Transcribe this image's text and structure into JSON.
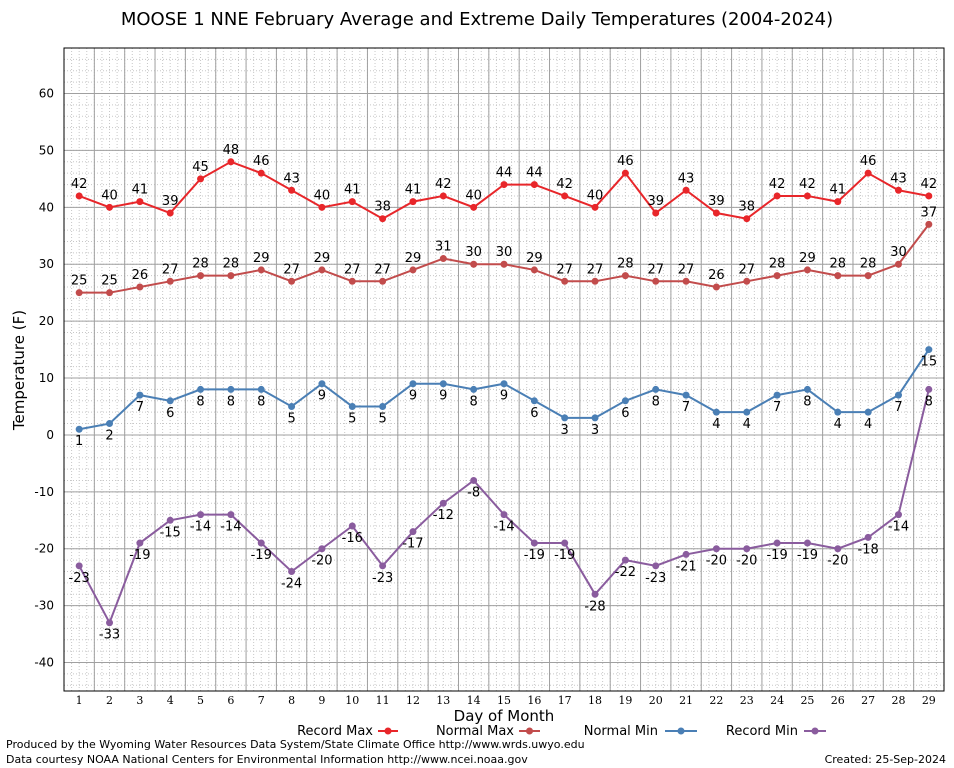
{
  "title": "MOOSE 1 NNE February Average and Extreme Daily Temperatures (2004-2024)",
  "footer": {
    "produced_by": "Produced by the Wyoming Water Resources Data System/State Climate Office http://www.wrds.uwyo.edu",
    "data_courtesy": "Data courtesy NOAA National Centers for Environmental Information http://www.ncei.noaa.gov",
    "created": "Created:  25-Sep-2024"
  },
  "chart_data": {
    "type": "line",
    "title": "MOOSE 1 NNE February Average and Extreme Daily Temperatures (2004-2024)",
    "xlabel": "Day of Month",
    "ylabel": "Temperature (F)",
    "x": [
      1,
      2,
      3,
      4,
      5,
      6,
      7,
      8,
      9,
      10,
      11,
      12,
      13,
      14,
      15,
      16,
      17,
      18,
      19,
      20,
      21,
      22,
      23,
      24,
      25,
      26,
      27,
      28,
      29
    ],
    "xlim": [
      0.5,
      29.5
    ],
    "ylim": [
      -45,
      68
    ],
    "yticks": [
      -40,
      -30,
      -20,
      -10,
      0,
      10,
      20,
      30,
      40,
      50,
      60
    ],
    "grid": true,
    "legend_position": "bottom",
    "series": [
      {
        "name": "Record Max",
        "color": "#e8262a",
        "values": [
          42,
          40,
          41,
          39,
          45,
          48,
          46,
          43,
          40,
          41,
          38,
          41,
          42,
          40,
          44,
          44,
          42,
          40,
          46,
          39,
          43,
          39,
          38,
          42,
          42,
          41,
          46,
          43,
          42
        ],
        "label_position": "above"
      },
      {
        "name": "Normal Max",
        "color": "#c24c4c",
        "values": [
          25,
          25,
          26,
          27,
          28,
          28,
          29,
          27,
          29,
          27,
          27,
          29,
          31,
          30,
          30,
          29,
          27,
          27,
          28,
          27,
          27,
          26,
          27,
          28,
          29,
          28,
          28,
          30,
          37
        ],
        "label_position": "above"
      },
      {
        "name": "Normal Min",
        "color": "#4a7fb5",
        "values": [
          1,
          2,
          7,
          6,
          8,
          8,
          8,
          5,
          9,
          5,
          5,
          9,
          9,
          8,
          9,
          6,
          3,
          3,
          6,
          8,
          7,
          4,
          4,
          7,
          8,
          4,
          4,
          7,
          15
        ],
        "label_position": "below"
      },
      {
        "name": "Record Min",
        "color": "#8a5c9e",
        "values": [
          -23,
          -33,
          -19,
          -15,
          -14,
          -14,
          -19,
          -24,
          -20,
          -16,
          -23,
          -17,
          -12,
          -8,
          -14,
          -19,
          -19,
          -28,
          -22,
          -23,
          -21,
          -20,
          -20,
          -19,
          -19,
          -20,
          -18,
          -14,
          8
        ],
        "label_position": "below"
      }
    ]
  }
}
